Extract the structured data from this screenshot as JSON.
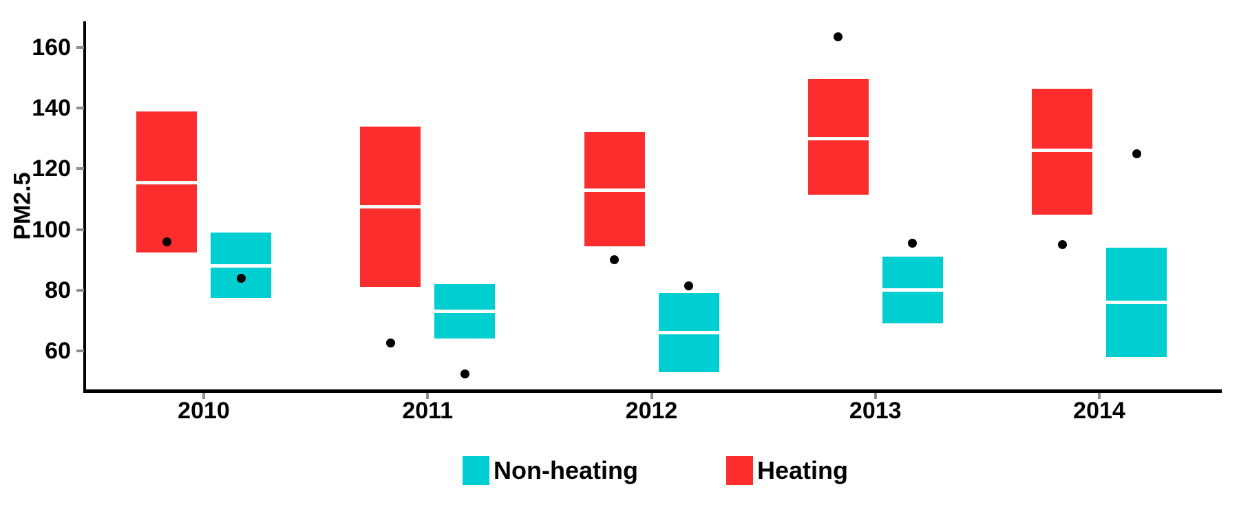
{
  "chart_data": {
    "type": "crossbar-boxplot",
    "title": "",
    "xlabel": "",
    "ylabel": "PM2.5",
    "categories": [
      "2010",
      "2011",
      "2012",
      "2013",
      "2014"
    ],
    "y_ticks": [
      60,
      80,
      100,
      120,
      140,
      160
    ],
    "ylim": [
      47,
      170
    ],
    "grid": false,
    "legend_position": "bottom-center",
    "axis_color": "#000000",
    "tick_color": "#8E8E8E",
    "median_line_color": "#FFFFFF",
    "point_color": "#000000",
    "series": [
      {
        "name": "Non-heating",
        "color": "#00CED1",
        "dodge": "right",
        "boxes": [
          {
            "ymin": 77.5,
            "median": 88,
            "ymax": 99
          },
          {
            "ymin": 64,
            "median": 73,
            "ymax": 82
          },
          {
            "ymin": 53,
            "median": 66,
            "ymax": 79
          },
          {
            "ymin": 69,
            "median": 80,
            "ymax": 91
          },
          {
            "ymin": 58,
            "median": 76,
            "ymax": 94
          }
        ],
        "points": [
          84,
          52.5,
          81.5,
          95.5,
          125
        ]
      },
      {
        "name": "Heating",
        "color": "#FC2D2D",
        "dodge": "left",
        "boxes": [
          {
            "ymin": 92.5,
            "median": 115.5,
            "ymax": 139
          },
          {
            "ymin": 81,
            "median": 107.5,
            "ymax": 134
          },
          {
            "ymin": 94.5,
            "median": 113,
            "ymax": 132
          },
          {
            "ymin": 111.5,
            "median": 130,
            "ymax": 149.5
          },
          {
            "ymin": 105,
            "median": 126,
            "ymax": 146.5
          }
        ],
        "points": [
          96,
          62.5,
          90,
          163.5,
          95
        ]
      }
    ]
  }
}
